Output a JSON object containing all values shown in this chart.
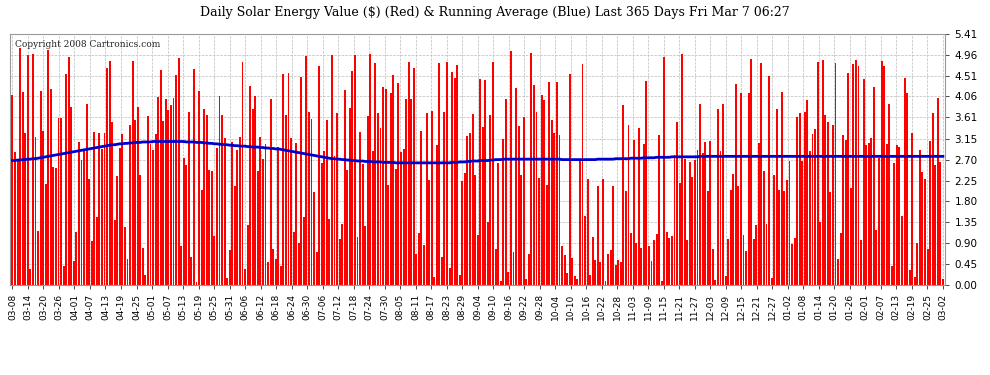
{
  "title": "Daily Solar Energy Value ($) (Red) & Running Average (Blue) Last 365 Days Fri Mar 7 06:27",
  "copyright": "Copyright 2008 Cartronics.com",
  "bar_color": "#ff0000",
  "avg_line_color": "#0000cc",
  "background_color": "#ffffff",
  "plot_bg_color": "#ffffff",
  "grid_color": "#bbbbbb",
  "ymax": 5.41,
  "yticks": [
    0.0,
    0.45,
    0.9,
    1.35,
    1.8,
    2.25,
    2.7,
    3.15,
    3.61,
    4.06,
    4.51,
    4.96,
    5.41
  ],
  "x_labels": [
    "03-08",
    "03-14",
    "03-20",
    "03-26",
    "04-01",
    "04-07",
    "04-13",
    "04-19",
    "04-25",
    "05-01",
    "05-07",
    "05-13",
    "05-19",
    "05-25",
    "05-31",
    "06-06",
    "06-12",
    "06-18",
    "06-24",
    "06-30",
    "07-06",
    "07-12",
    "07-18",
    "07-24",
    "07-30",
    "08-05",
    "08-11",
    "08-17",
    "08-23",
    "08-29",
    "09-04",
    "09-10",
    "09-16",
    "09-22",
    "09-28",
    "10-04",
    "10-10",
    "10-16",
    "10-22",
    "10-28",
    "11-03",
    "11-09",
    "11-15",
    "11-21",
    "11-27",
    "12-03",
    "12-09",
    "12-15",
    "12-21",
    "12-27",
    "01-02",
    "01-08",
    "01-14",
    "01-20",
    "01-26",
    "02-01",
    "02-07",
    "02-13",
    "02-19",
    "02-25",
    "03-02"
  ],
  "avg_line_values": [
    2.68,
    2.68,
    2.69,
    2.69,
    2.7,
    2.7,
    2.71,
    2.71,
    2.72,
    2.72,
    2.73,
    2.74,
    2.75,
    2.76,
    2.77,
    2.78,
    2.79,
    2.8,
    2.81,
    2.82,
    2.83,
    2.84,
    2.85,
    2.86,
    2.87,
    2.88,
    2.89,
    2.9,
    2.91,
    2.92,
    2.93,
    2.94,
    2.95,
    2.96,
    2.97,
    2.98,
    2.99,
    3.0,
    3.01,
    3.02,
    3.02,
    3.03,
    3.04,
    3.04,
    3.05,
    3.05,
    3.06,
    3.06,
    3.07,
    3.07,
    3.07,
    3.08,
    3.08,
    3.08,
    3.08,
    3.09,
    3.09,
    3.09,
    3.09,
    3.09,
    3.09,
    3.09,
    3.09,
    3.09,
    3.09,
    3.09,
    3.09,
    3.09,
    3.08,
    3.08,
    3.08,
    3.08,
    3.07,
    3.07,
    3.07,
    3.06,
    3.06,
    3.05,
    3.05,
    3.04,
    3.04,
    3.03,
    3.03,
    3.02,
    3.02,
    3.01,
    3.01,
    3.0,
    3.0,
    2.99,
    2.99,
    2.99,
    2.98,
    2.98,
    2.97,
    2.97,
    2.97,
    2.96,
    2.96,
    2.95,
    2.95,
    2.94,
    2.94,
    2.93,
    2.93,
    2.92,
    2.91,
    2.9,
    2.89,
    2.88,
    2.87,
    2.86,
    2.85,
    2.84,
    2.83,
    2.82,
    2.81,
    2.8,
    2.79,
    2.78,
    2.77,
    2.76,
    2.75,
    2.74,
    2.73,
    2.72,
    2.72,
    2.71,
    2.71,
    2.7,
    2.7,
    2.69,
    2.69,
    2.68,
    2.68,
    2.67,
    2.67,
    2.67,
    2.66,
    2.66,
    2.66,
    2.65,
    2.65,
    2.65,
    2.65,
    2.64,
    2.64,
    2.64,
    2.64,
    2.64,
    2.63,
    2.63,
    2.63,
    2.63,
    2.63,
    2.63,
    2.63,
    2.63,
    2.63,
    2.63,
    2.63,
    2.63,
    2.63,
    2.63,
    2.63,
    2.63,
    2.63,
    2.63,
    2.63,
    2.63,
    2.63,
    2.63,
    2.64,
    2.64,
    2.64,
    2.65,
    2.65,
    2.65,
    2.66,
    2.66,
    2.67,
    2.67,
    2.67,
    2.68,
    2.68,
    2.68,
    2.68,
    2.69,
    2.69,
    2.7,
    2.7,
    2.7,
    2.71,
    2.71,
    2.71,
    2.71,
    2.71,
    2.71,
    2.71,
    2.71,
    2.71,
    2.71,
    2.71,
    2.71,
    2.71,
    2.71,
    2.71,
    2.71,
    2.71,
    2.71,
    2.71,
    2.71,
    2.71,
    2.71,
    2.71,
    2.7,
    2.7,
    2.7,
    2.7,
    2.7,
    2.7,
    2.7,
    2.7,
    2.7,
    2.7,
    2.7,
    2.7,
    2.7,
    2.7,
    2.71,
    2.71,
    2.71,
    2.71,
    2.71,
    2.71,
    2.71,
    2.72,
    2.72,
    2.72,
    2.72,
    2.72,
    2.72,
    2.73,
    2.73,
    2.73,
    2.73,
    2.73,
    2.74,
    2.74,
    2.74,
    2.74,
    2.74,
    2.75,
    2.75,
    2.75,
    2.75,
    2.75,
    2.75,
    2.76,
    2.76,
    2.76,
    2.76,
    2.76,
    2.76,
    2.76,
    2.76,
    2.76,
    2.76,
    2.76,
    2.77,
    2.77,
    2.77,
    2.77,
    2.77,
    2.77,
    2.77,
    2.77,
    2.77,
    2.77,
    2.77,
    2.77,
    2.77,
    2.77,
    2.77,
    2.77,
    2.77,
    2.77,
    2.77,
    2.77,
    2.77,
    2.77,
    2.77,
    2.77,
    2.77,
    2.77,
    2.77,
    2.77,
    2.77,
    2.77,
    2.77,
    2.77,
    2.77,
    2.77,
    2.77,
    2.77,
    2.77,
    2.77,
    2.77,
    2.77,
    2.77,
    2.77,
    2.77,
    2.77,
    2.77,
    2.77,
    2.77,
    2.77,
    2.77,
    2.77,
    2.77,
    2.77,
    2.77,
    2.77,
    2.77,
    2.77,
    2.77,
    2.77,
    2.77,
    2.77,
    2.77,
    2.77,
    2.77,
    2.77,
    2.77,
    2.77,
    2.77,
    2.77,
    2.77,
    2.77,
    2.77,
    2.77,
    2.77,
    2.77,
    2.77,
    2.77,
    2.77,
    2.77,
    2.77,
    2.77,
    2.77,
    2.77,
    2.77,
    2.77,
    2.77,
    2.77,
    2.77,
    2.77,
    2.77,
    2.77,
    2.77,
    2.77,
    2.77,
    2.77,
    2.77,
    2.77
  ]
}
